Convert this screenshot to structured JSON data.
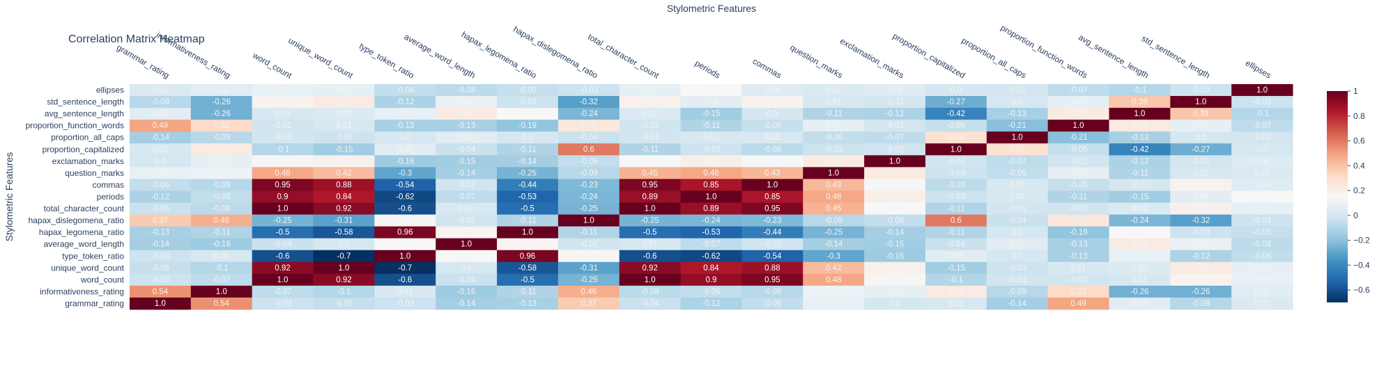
{
  "chart_data": {
    "type": "heatmap",
    "title": "Correlation Matrix Heatmap",
    "xlabel": "Stylometric Features",
    "ylabel": "Stylometric Features",
    "x": [
      "grammar_rating",
      "informativeness_rating",
      "word_count",
      "unique_word_count",
      "type_token_ratio",
      "average_word_length",
      "hapax_legomena_ratio",
      "hapax_dislegomena_ratio",
      "total_character_count",
      "periods",
      "commas",
      "question_marks",
      "exclamation_marks",
      "proportion_capitalized",
      "proportion_all_caps",
      "proportion_function_words",
      "avg_sentence_length",
      "std_sentence_length",
      "ellipses"
    ],
    "y": [
      "ellipses",
      "std_sentence_length",
      "avg_sentence_length",
      "proportion_function_words",
      "proportion_all_caps",
      "proportion_capitalized",
      "exclamation_marks",
      "question_marks",
      "commas",
      "periods",
      "total_character_count",
      "hapax_dislegomena_ratio",
      "hapax_legomena_ratio",
      "average_word_length",
      "type_token_ratio",
      "unique_word_count",
      "word_count",
      "informativeness_rating",
      "grammar_rating"
    ],
    "z": [
      [
        0.02,
        0.05,
        0.08,
        0.07,
        -0.06,
        -0.08,
        -0.05,
        -0.03,
        0.07,
        0.15,
        0.04,
        0.02,
        0.04,
        -0.0,
        -0.01,
        -0.07,
        -0.1,
        -0.03,
        1.0
      ],
      [
        -0.09,
        -0.26,
        0.18,
        0.22,
        -0.12,
        0.09,
        -0.03,
        -0.32,
        0.19,
        0.06,
        0.18,
        0.01,
        -0.01,
        -0.27,
        -0.0,
        0.07,
        0.39,
        1.0,
        -0.03
      ],
      [
        0.05,
        -0.26,
        0.01,
        0.03,
        0.08,
        0.22,
        0.15,
        -0.24,
        0.02,
        -0.15,
        0.0,
        -0.11,
        -0.12,
        -0.42,
        -0.13,
        0.23,
        1.0,
        0.39,
        -0.1
      ],
      [
        0.49,
        0.32,
        -0.02,
        0.01,
        -0.13,
        -0.13,
        -0.19,
        0.25,
        -0.02,
        -0.11,
        -0.05,
        0.07,
        -0.01,
        -0.05,
        -0.21,
        1.0,
        0.23,
        0.07,
        -0.07
      ],
      [
        -0.14,
        -0.09,
        -0.01,
        -0.03,
        0.0,
        0.05,
        0.0,
        -0.04,
        -0.01,
        0.01,
        0.01,
        -0.06,
        -0.07,
        0.28,
        1.0,
        -0.21,
        -0.13,
        -0.0,
        -0.01
      ],
      [
        0.01,
        0.22,
        -0.1,
        -0.15,
        0.05,
        -0.04,
        -0.11,
        0.6,
        -0.11,
        -0.03,
        -0.08,
        -0.03,
        -0.02,
        1.0,
        0.28,
        -0.05,
        -0.42,
        -0.27,
        -0.0
      ],
      [
        -0.0,
        0.07,
        0.16,
        0.19,
        -0.16,
        -0.15,
        -0.14,
        -0.06,
        0.15,
        0.2,
        0.14,
        0.23,
        1.0,
        -0.02,
        -0.07,
        -0.01,
        -0.12,
        -0.01,
        0.04
      ],
      [
        0.08,
        0.1,
        0.48,
        0.42,
        -0.3,
        -0.14,
        -0.25,
        -0.09,
        0.45,
        0.48,
        0.43,
        1.0,
        0.23,
        -0.03,
        -0.06,
        0.07,
        -0.11,
        0.01,
        0.02
      ],
      [
        -0.06,
        -0.09,
        0.95,
        0.88,
        -0.54,
        -0.02,
        -0.44,
        -0.23,
        0.95,
        0.85,
        1.0,
        0.43,
        0.14,
        -0.08,
        0.01,
        -0.05,
        0.0,
        0.18,
        0.04
      ],
      [
        -0.12,
        -0.06,
        0.9,
        0.84,
        -0.62,
        -0.07,
        -0.53,
        -0.24,
        0.89,
        1.0,
        0.85,
        0.48,
        0.2,
        -0.03,
        0.01,
        -0.11,
        -0.15,
        0.06,
        0.15
      ],
      [
        -0.04,
        -0.08,
        1.0,
        0.92,
        -0.6,
        0.01,
        -0.5,
        -0.25,
        1.0,
        0.89,
        0.95,
        0.45,
        0.15,
        -0.11,
        -0.01,
        -0.02,
        0.02,
        0.19,
        0.07
      ],
      [
        0.37,
        0.46,
        -0.25,
        -0.31,
        0.16,
        -0.02,
        -0.11,
        1.0,
        -0.25,
        -0.24,
        -0.23,
        -0.09,
        -0.06,
        0.6,
        -0.04,
        0.25,
        -0.24,
        -0.32,
        -0.03
      ],
      [
        -0.13,
        -0.11,
        -0.5,
        -0.58,
        0.96,
        0.17,
        1.0,
        -0.11,
        -0.5,
        -0.53,
        -0.44,
        -0.25,
        -0.14,
        -0.11,
        0.0,
        -0.19,
        0.15,
        -0.03,
        -0.05
      ],
      [
        -0.14,
        -0.16,
        -0.04,
        0.0,
        0.15,
        1.0,
        0.17,
        -0.02,
        0.01,
        -0.07,
        -0.02,
        -0.14,
        -0.15,
        -0.04,
        0.05,
        -0.13,
        0.22,
        0.09,
        -0.08
      ],
      [
        -0.03,
        0.01,
        -0.6,
        -0.7,
        1.0,
        0.15,
        0.96,
        0.16,
        -0.6,
        -0.62,
        -0.54,
        -0.3,
        -0.16,
        0.05,
        0.0,
        -0.13,
        0.08,
        -0.12,
        -0.06
      ],
      [
        -0.05,
        -0.1,
        0.92,
        1.0,
        -0.7,
        0.0,
        -0.58,
        -0.31,
        0.92,
        0.84,
        0.88,
        0.42,
        0.19,
        -0.15,
        -0.03,
        0.01,
        0.03,
        0.22,
        0.07
      ],
      [
        -0.03,
        -0.07,
        1.0,
        0.92,
        -0.6,
        -0.04,
        -0.5,
        -0.25,
        1.0,
        0.9,
        0.95,
        0.48,
        0.16,
        -0.1,
        -0.01,
        -0.02,
        0.01,
        0.18,
        0.08
      ],
      [
        0.54,
        1.0,
        -0.07,
        -0.1,
        0.01,
        -0.16,
        -0.11,
        0.46,
        -0.08,
        -0.06,
        -0.09,
        0.1,
        0.07,
        0.22,
        -0.09,
        0.32,
        -0.26,
        -0.26,
        0.05
      ],
      [
        1.0,
        0.54,
        -0.03,
        -0.05,
        -0.03,
        -0.14,
        -0.13,
        0.37,
        -0.04,
        -0.12,
        -0.06,
        0.08,
        -0.0,
        0.01,
        -0.14,
        0.49,
        0.05,
        -0.09,
        0.02
      ]
    ],
    "zrange": [
      -0.7,
      1.0
    ],
    "colorscale": "RdBu-reversed",
    "colorbar_ticks": [
      1,
      0.8,
      0.6,
      0.4,
      0.2,
      0,
      -0.2,
      -0.4,
      -0.6
    ],
    "grid": false
  }
}
